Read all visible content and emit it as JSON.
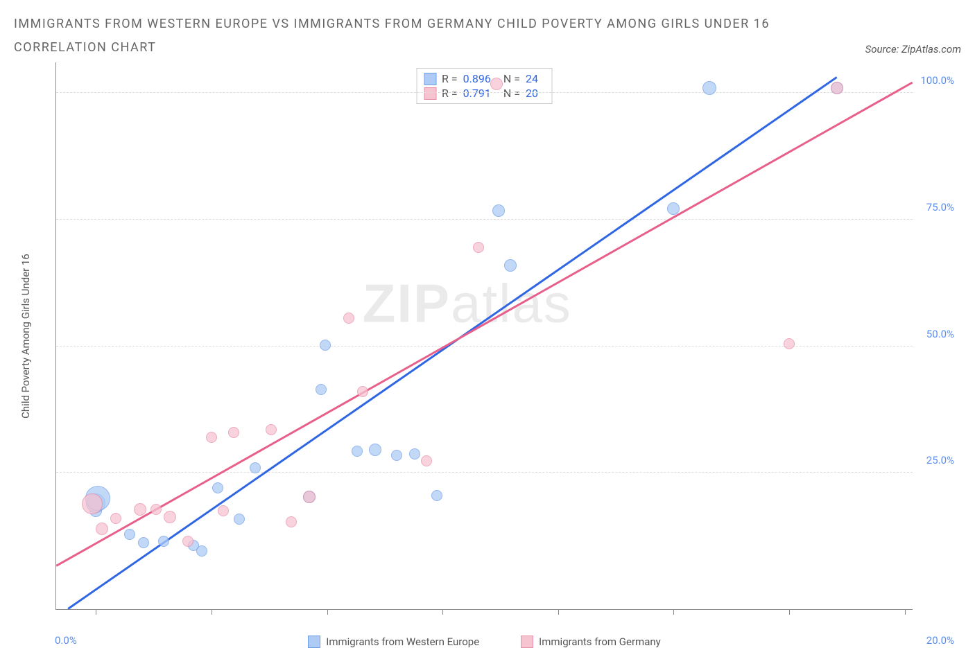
{
  "title": "IMMIGRANTS FROM WESTERN EUROPE VS IMMIGRANTS FROM GERMANY CHILD POVERTY AMONG GIRLS UNDER 16 CORRELATION CHART",
  "source": "Source: ZipAtlas.com",
  "watermark_bold": "ZIP",
  "watermark_rest": "atlas",
  "y_axis_title": "Child Poverty Among Girls Under 16",
  "x_range": [
    -1.0,
    20.5
  ],
  "y_range": [
    -2.0,
    106.0
  ],
  "x_tick_positions": [
    0,
    2.9,
    5.8,
    8.7,
    11.6,
    14.5,
    17.4,
    20.3
  ],
  "x_label_start": "0.0%",
  "x_label_end": "20.0%",
  "y_gridlines": [
    {
      "v": 25.0,
      "label": "25.0%"
    },
    {
      "v": 50.0,
      "label": "50.0%"
    },
    {
      "v": 75.0,
      "label": "75.0%"
    },
    {
      "v": 100.0,
      "label": "100.0%"
    }
  ],
  "series": [
    {
      "name": "Immigrants from Western Europe",
      "fill": "#aecbf5",
      "stroke": "#6f9ee8",
      "line_color": "#2f66e3",
      "stats": {
        "R": "0.896",
        "N": "24"
      },
      "regression": {
        "x1": -0.7,
        "y1": -2.0,
        "x2": 18.6,
        "y2": 103.0
      },
      "points": [
        {
          "x": 0.0,
          "y": 17.5,
          "r": 9
        },
        {
          "x": 0.0,
          "y": 19.0,
          "r": 14
        },
        {
          "x": 0.05,
          "y": 20.0,
          "r": 18
        },
        {
          "x": 0.85,
          "y": 12.8,
          "r": 8
        },
        {
          "x": 1.2,
          "y": 11.2,
          "r": 8
        },
        {
          "x": 1.7,
          "y": 11.5,
          "r": 8
        },
        {
          "x": 2.45,
          "y": 10.7,
          "r": 8
        },
        {
          "x": 2.65,
          "y": 9.5,
          "r": 8
        },
        {
          "x": 3.05,
          "y": 22.0,
          "r": 8
        },
        {
          "x": 3.6,
          "y": 15.8,
          "r": 8
        },
        {
          "x": 4.0,
          "y": 26.0,
          "r": 8
        },
        {
          "x": 5.35,
          "y": 20.2,
          "r": 9
        },
        {
          "x": 5.65,
          "y": 41.5,
          "r": 8
        },
        {
          "x": 5.75,
          "y": 50.2,
          "r": 8
        },
        {
          "x": 6.55,
          "y": 29.2,
          "r": 8
        },
        {
          "x": 7.0,
          "y": 29.5,
          "r": 9
        },
        {
          "x": 7.55,
          "y": 28.5,
          "r": 8
        },
        {
          "x": 8.0,
          "y": 28.7,
          "r": 8
        },
        {
          "x": 8.55,
          "y": 20.5,
          "r": 8
        },
        {
          "x": 10.1,
          "y": 76.8,
          "r": 9
        },
        {
          "x": 10.4,
          "y": 66.0,
          "r": 9
        },
        {
          "x": 14.5,
          "y": 77.2,
          "r": 9
        },
        {
          "x": 15.4,
          "y": 101.0,
          "r": 10
        },
        {
          "x": 18.6,
          "y": 101.0,
          "r": 9
        }
      ]
    },
    {
      "name": "Immigrants from Germany",
      "fill": "#f6c3d1",
      "stroke": "#e88fa9",
      "line_color": "#e85f8a",
      "stats": {
        "R": "0.791",
        "N": "20"
      },
      "regression": {
        "x1": -1.0,
        "y1": 6.5,
        "x2": 20.5,
        "y2": 102.0
      },
      "points": [
        {
          "x": -0.1,
          "y": 18.8,
          "r": 15
        },
        {
          "x": 0.15,
          "y": 14.0,
          "r": 9
        },
        {
          "x": 0.5,
          "y": 16.0,
          "r": 8
        },
        {
          "x": 1.1,
          "y": 17.8,
          "r": 9
        },
        {
          "x": 1.5,
          "y": 17.8,
          "r": 8
        },
        {
          "x": 1.85,
          "y": 16.2,
          "r": 9
        },
        {
          "x": 2.3,
          "y": 11.5,
          "r": 8
        },
        {
          "x": 2.9,
          "y": 32.0,
          "r": 8
        },
        {
          "x": 3.2,
          "y": 17.5,
          "r": 8
        },
        {
          "x": 3.45,
          "y": 33.0,
          "r": 8
        },
        {
          "x": 4.4,
          "y": 33.5,
          "r": 8
        },
        {
          "x": 4.9,
          "y": 15.3,
          "r": 8
        },
        {
          "x": 5.35,
          "y": 20.2,
          "r": 9
        },
        {
          "x": 6.35,
          "y": 55.5,
          "r": 8
        },
        {
          "x": 6.7,
          "y": 41.0,
          "r": 8
        },
        {
          "x": 8.3,
          "y": 27.3,
          "r": 8
        },
        {
          "x": 9.6,
          "y": 69.5,
          "r": 8
        },
        {
          "x": 10.05,
          "y": 101.8,
          "r": 9
        },
        {
          "x": 17.4,
          "y": 50.5,
          "r": 8
        },
        {
          "x": 18.6,
          "y": 101.0,
          "r": 9
        }
      ]
    }
  ],
  "legend_labels": {
    "R": "R =",
    "N": "N ="
  }
}
